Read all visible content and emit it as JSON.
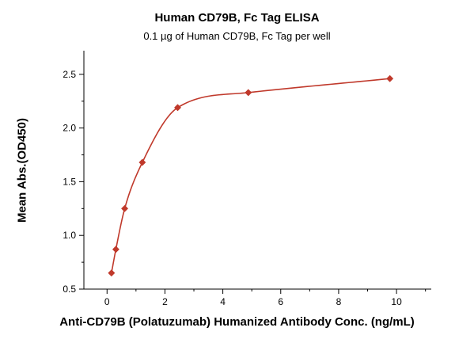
{
  "chart_data": {
    "type": "scatter",
    "title": "Human CD79B, Fc Tag ELISA",
    "subtitle": "0.1 µg of Human CD79B, Fc Tag per well",
    "xlabel": "Anti-CD79B (Polatuzumab) Humanized Antibody Conc. (ng/mL)",
    "ylabel": "Mean Abs.(OD450)",
    "xlim": [
      -0.8,
      11.2
    ],
    "ylim": [
      0.5,
      2.72
    ],
    "xticks": [
      0,
      2,
      4,
      6,
      8,
      10
    ],
    "xtick_labels": [
      "0",
      "2",
      "4",
      "6",
      "8",
      "10"
    ],
    "yticks": [
      0.5,
      1.0,
      1.5,
      2.0,
      2.5
    ],
    "ytick_labels": [
      "0.5",
      "1.0",
      "1.5",
      "2.0",
      "2.5"
    ],
    "grid": false,
    "series": [
      {
        "marker": "diamond",
        "color": "#c0392b",
        "x": [
          0.153,
          0.305,
          0.61,
          1.22,
          2.44,
          4.88,
          9.77
        ],
        "y": [
          0.65,
          0.87,
          1.25,
          1.68,
          2.19,
          2.33,
          2.46
        ],
        "fit_curve": true
      }
    ]
  }
}
